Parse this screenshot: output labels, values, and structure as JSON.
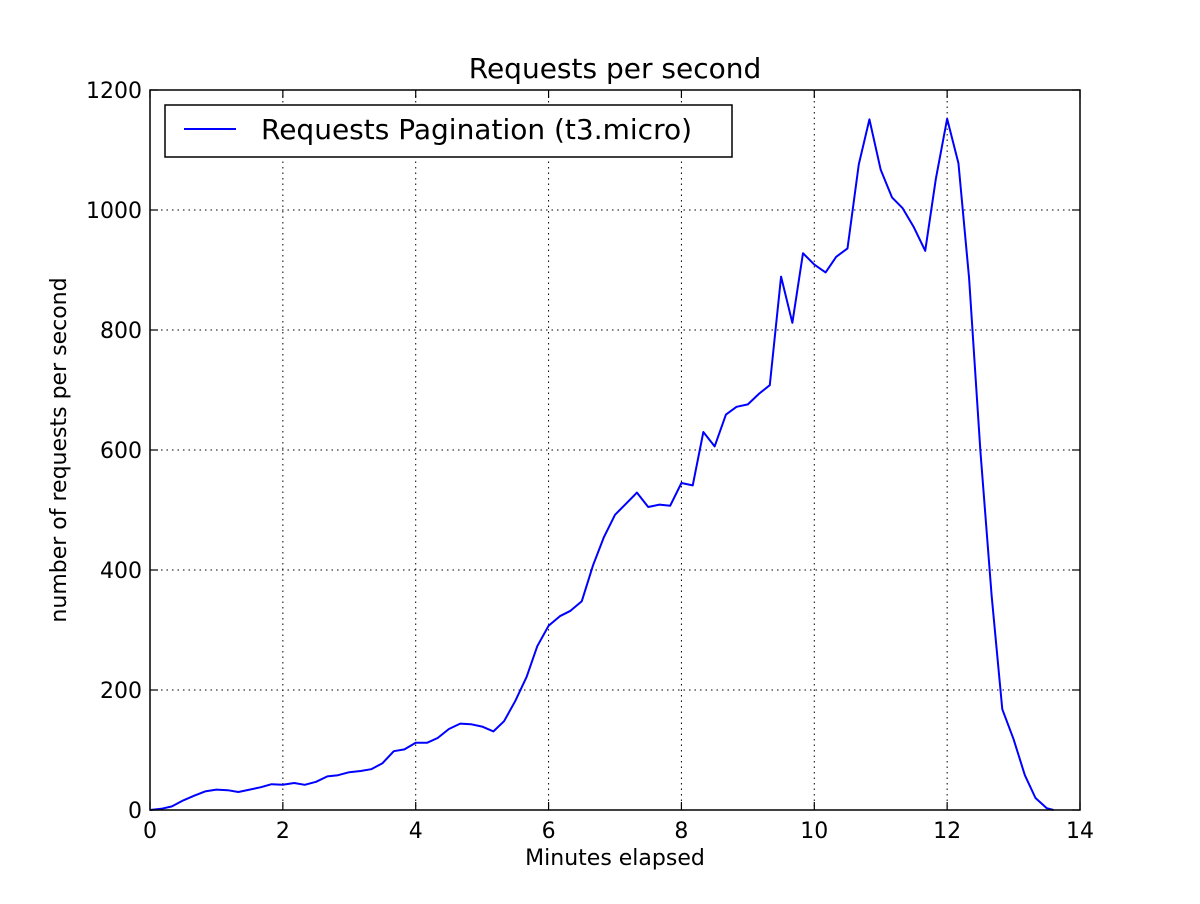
{
  "chart_data": {
    "type": "line",
    "title": "Requests per second",
    "xlabel": "Minutes elapsed",
    "ylabel": "number of requests per second",
    "xlim": [
      0,
      14
    ],
    "ylim": [
      0,
      1200
    ],
    "x_ticks": [
      0,
      2,
      4,
      6,
      8,
      10,
      12,
      14
    ],
    "y_ticks": [
      0,
      200,
      400,
      600,
      800,
      1000,
      1200
    ],
    "x_tick_labels": [
      "0",
      "2",
      "4",
      "6",
      "8",
      "10",
      "12",
      "14"
    ],
    "y_tick_labels": [
      "0",
      "200",
      "400",
      "600",
      "800",
      "1000",
      "1200"
    ],
    "grid": true,
    "legend_position": "upper-left",
    "series": [
      {
        "name": "Requests Pagination (t3.micro)",
        "color": "#0000ff",
        "x": [
          0.0,
          0.17,
          0.33,
          0.5,
          0.67,
          0.83,
          1.0,
          1.17,
          1.33,
          1.5,
          1.67,
          1.83,
          2.0,
          2.17,
          2.33,
          2.5,
          2.67,
          2.83,
          3.0,
          3.17,
          3.33,
          3.5,
          3.67,
          3.83,
          4.0,
          4.17,
          4.33,
          4.5,
          4.67,
          4.83,
          5.0,
          5.17,
          5.33,
          5.5,
          5.67,
          5.83,
          6.0,
          6.17,
          6.33,
          6.5,
          6.67,
          6.83,
          7.0,
          7.17,
          7.33,
          7.5,
          7.67,
          7.83,
          8.0,
          8.17,
          8.33,
          8.5,
          8.67,
          8.83,
          9.0,
          9.17,
          9.33,
          9.5,
          9.67,
          9.83,
          10.0,
          10.17,
          10.33,
          10.5,
          10.67,
          10.83,
          11.0,
          11.17,
          11.33,
          11.5,
          11.67,
          11.83,
          12.0,
          12.17,
          12.33,
          12.5,
          12.67,
          12.83,
          13.0,
          13.17,
          13.33,
          13.5,
          13.6
        ],
        "y": [
          0,
          2,
          6,
          16,
          24,
          31,
          34,
          33,
          30,
          34,
          38,
          43,
          42,
          45,
          42,
          47,
          56,
          58,
          63,
          65,
          68,
          78,
          98,
          101,
          112,
          112,
          120,
          135,
          144,
          143,
          139,
          131,
          148,
          182,
          222,
          273,
          307,
          323,
          332,
          348,
          408,
          454,
          492,
          511,
          529,
          505,
          509,
          507,
          545,
          541,
          630,
          606,
          659,
          672,
          676,
          694,
          708,
          889,
          812,
          928,
          909,
          896,
          922,
          936,
          1076,
          1151,
          1067,
          1021,
          1003,
          971,
          932,
          1052,
          1152,
          1078,
          887,
          599,
          357,
          168,
          118,
          58,
          20,
          3,
          0
        ]
      }
    ]
  }
}
